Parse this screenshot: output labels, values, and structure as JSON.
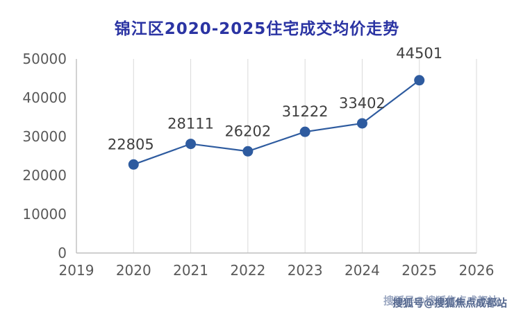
{
  "title": "锦江区2020-2025住宅成交均价走势",
  "watermark": {
    "text": "搜狐号@搜狐焦点成都站"
  },
  "chart_data": {
    "type": "line",
    "title": "锦江区2020-2025住宅成交均价走势",
    "categories": [
      "2020",
      "2021",
      "2022",
      "2023",
      "2024",
      "2025"
    ],
    "x_numeric": [
      2020,
      2021,
      2022,
      2023,
      2024,
      2025
    ],
    "values": [
      22805,
      28111,
      26202,
      31222,
      33402,
      44501
    ],
    "x_ticks": [
      "2019",
      "2020",
      "2021",
      "2022",
      "2023",
      "2024",
      "2025",
      "2026"
    ],
    "y_ticks": [
      0,
      10000,
      20000,
      30000,
      40000,
      50000
    ],
    "xlim": [
      2019,
      2026
    ],
    "ylim": [
      0,
      50000
    ],
    "xlabel": "",
    "ylabel": "",
    "grid": "vertical-only",
    "legend": "none",
    "marker": "circle",
    "line_color": "#2e5b9f",
    "label_color": "#3f3f3f",
    "tick_color": "#595959",
    "grid_color": "#d9d9d9",
    "axis_color": "#bfbfbf",
    "title_color": "#2b34a3"
  }
}
